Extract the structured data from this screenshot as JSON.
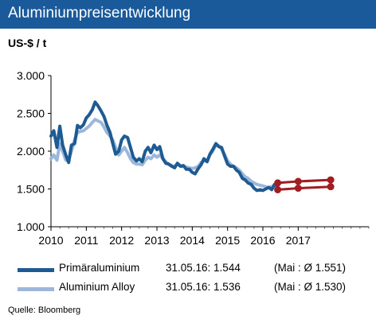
{
  "header": {
    "title": "Aluminiumpreisentwicklung"
  },
  "colors": {
    "title_bg": "#1a5a9a",
    "primary": "#1f5b93",
    "alloy": "#9db7db",
    "forecast": "#a11d21"
  },
  "chart_data": {
    "type": "line",
    "title": "Aluminiumpreisentwicklung",
    "ylabel": "US-$ / t",
    "xlabel": "",
    "ylim": [
      1000,
      3000
    ],
    "xlim": [
      2010,
      2019
    ],
    "y_ticks": [
      {
        "value": 1000,
        "label": "1.000"
      },
      {
        "value": 1500,
        "label": "1.500"
      },
      {
        "value": 2000,
        "label": "2.000"
      },
      {
        "value": 2500,
        "label": "2.500"
      },
      {
        "value": 3000,
        "label": "3.000"
      }
    ],
    "x_ticks": [
      {
        "value": 2010.0,
        "label": "2010"
      },
      {
        "value": 2011.0,
        "label": "2011"
      },
      {
        "value": 2012.0,
        "label": "2012"
      },
      {
        "value": 2013.0,
        "label": "2013"
      },
      {
        "value": 2014.0,
        "label": "2014"
      },
      {
        "value": 2015.0,
        "label": "2015"
      },
      {
        "value": 2016.0,
        "label": "2016"
      },
      {
        "value": 2017.0,
        "label": "2017"
      }
    ],
    "grid": false,
    "series": [
      {
        "name": "Primäraluminium",
        "x": [
          2010.0,
          2010.08,
          2010.17,
          2010.25,
          2010.33,
          2010.42,
          2010.5,
          2010.58,
          2010.67,
          2010.75,
          2010.83,
          2010.92,
          2011.0,
          2011.08,
          2011.17,
          2011.25,
          2011.33,
          2011.42,
          2011.5,
          2011.58,
          2011.67,
          2011.75,
          2011.83,
          2011.92,
          2012.0,
          2012.08,
          2012.17,
          2012.25,
          2012.33,
          2012.42,
          2012.5,
          2012.58,
          2012.67,
          2012.75,
          2012.83,
          2012.92,
          2013.0,
          2013.08,
          2013.17,
          2013.25,
          2013.33,
          2013.42,
          2013.5,
          2013.58,
          2013.67,
          2013.75,
          2013.83,
          2013.92,
          2014.0,
          2014.08,
          2014.17,
          2014.25,
          2014.33,
          2014.42,
          2014.5,
          2014.58,
          2014.67,
          2014.75,
          2014.83,
          2014.92,
          2015.0,
          2015.08,
          2015.17,
          2015.25,
          2015.33,
          2015.42,
          2015.5,
          2015.58,
          2015.67,
          2015.75,
          2015.83,
          2015.92,
          2016.0,
          2016.08,
          2016.17,
          2016.25,
          2016.33,
          2016.42
        ],
        "values": [
          2200,
          2270,
          2050,
          2330,
          2080,
          1950,
          1850,
          2080,
          2100,
          2340,
          2310,
          2350,
          2440,
          2480,
          2550,
          2650,
          2600,
          2530,
          2460,
          2350,
          2250,
          2100,
          1960,
          2000,
          2150,
          2200,
          2180,
          2050,
          1920,
          1870,
          1900,
          1860,
          2000,
          2050,
          1980,
          2080,
          2020,
          2060,
          1900,
          1840,
          1830,
          1800,
          1780,
          1840,
          1800,
          1810,
          1760,
          1760,
          1720,
          1700,
          1770,
          1820,
          1900,
          1860,
          1960,
          2020,
          2100,
          2060,
          2050,
          1930,
          1830,
          1800,
          1800,
          1750,
          1720,
          1640,
          1620,
          1580,
          1560,
          1510,
          1480,
          1490,
          1480,
          1500,
          1520,
          1490,
          1560,
          1544
        ],
        "color": "#1f5b93"
      },
      {
        "name": "Aluminium Alloy",
        "x": [
          2010.0,
          2010.08,
          2010.17,
          2010.25,
          2010.33,
          2010.42,
          2010.5,
          2010.58,
          2010.67,
          2010.75,
          2010.83,
          2010.92,
          2011.0,
          2011.08,
          2011.17,
          2011.25,
          2011.33,
          2011.42,
          2011.5,
          2011.58,
          2011.67,
          2011.75,
          2011.83,
          2011.92,
          2012.0,
          2012.08,
          2012.17,
          2012.25,
          2012.33,
          2012.42,
          2012.5,
          2012.58,
          2012.67,
          2012.75,
          2012.83,
          2012.92,
          2013.0,
          2013.08,
          2013.17,
          2013.25,
          2013.33,
          2013.42,
          2013.5,
          2013.58,
          2013.67,
          2013.75,
          2013.83,
          2013.92,
          2014.0,
          2014.08,
          2014.17,
          2014.25,
          2014.33,
          2014.42,
          2014.5,
          2014.58,
          2014.67,
          2014.75,
          2014.83,
          2014.92,
          2015.0,
          2015.08,
          2015.17,
          2015.25,
          2015.33,
          2015.42,
          2015.5,
          2015.58,
          2015.67,
          2015.75,
          2015.83,
          2015.92,
          2016.0,
          2016.08,
          2016.17,
          2016.25,
          2016.33,
          2016.42
        ],
        "values": [
          1900,
          1950,
          1880,
          2100,
          2000,
          1880,
          1880,
          2000,
          2150,
          2250,
          2260,
          2270,
          2300,
          2330,
          2380,
          2420,
          2400,
          2380,
          2320,
          2250,
          2200,
          2150,
          2050,
          1950,
          2000,
          2050,
          1980,
          1900,
          1850,
          1830,
          1830,
          1820,
          1880,
          1920,
          1900,
          1950,
          1920,
          1950,
          1900,
          1860,
          1830,
          1810,
          1800,
          1830,
          1800,
          1800,
          1790,
          1780,
          1770,
          1780,
          1800,
          1850,
          1870,
          1880,
          1950,
          2000,
          2080,
          2070,
          2030,
          1950,
          1870,
          1830,
          1800,
          1780,
          1750,
          1700,
          1660,
          1640,
          1600,
          1580,
          1560,
          1550,
          1540,
          1530,
          1520,
          1530,
          1550,
          1536
        ],
        "color": "#9db7db"
      },
      {
        "name": "",
        "role": "forecast",
        "x": [
          2016.42,
          2017.0,
          2017.92
        ],
        "values": [
          1580,
          1600,
          1620
        ],
        "color": "#a11d21"
      },
      {
        "name": "",
        "role": "forecast",
        "x": [
          2016.42,
          2017.0,
          2017.92
        ],
        "values": [
          1490,
          1510,
          1530
        ],
        "color": "#a11d21"
      }
    ],
    "legend": {
      "placement": "bottom",
      "entries": [
        {
          "label": "Primäraluminium",
          "value": "31.05.16: 1.544",
          "avg": "(Mai : Ø 1.551)",
          "color": "#1f5b93"
        },
        {
          "label": "Aluminium Alloy",
          "value": "31.05.16: 1.536",
          "avg": "(Mai : Ø 1.530)",
          "color": "#9db7db"
        }
      ]
    }
  },
  "footer": {
    "source": "Quelle: Bloomberg"
  }
}
